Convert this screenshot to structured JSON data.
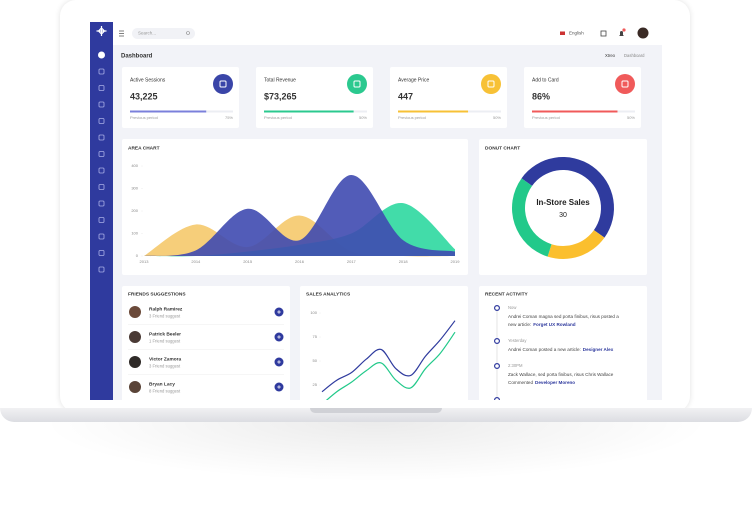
{
  "header": {
    "search_placeholder": "Search...",
    "language": "English"
  },
  "page": {
    "title": "Dashboard",
    "breadcrumb": [
      "Xtreo",
      "Dashboard"
    ]
  },
  "stats": [
    {
      "title": "Active Sessions",
      "value": "43,225",
      "progress": 74,
      "footer_label": "Previous period",
      "footer_value": "75%",
      "bar_color": "#7b80db",
      "icon_color": "#3a45a8"
    },
    {
      "title": "Total Revenue",
      "value": "$73,265",
      "progress": 87,
      "footer_label": "Previous period",
      "footer_value": "50%",
      "bar_color": "#2bc98f",
      "icon_color": "#2bc98f"
    },
    {
      "title": "Average Price",
      "value": "447",
      "progress": 68,
      "footer_label": "Previous period",
      "footer_value": "50%",
      "bar_color": "#f7c136",
      "icon_color": "#f7c136"
    },
    {
      "title": "Add to Card",
      "value": "86%",
      "progress": 83,
      "footer_label": "Previous period",
      "footer_value": "50%",
      "bar_color": "#f05a5a",
      "icon_color": "#f05a5a"
    }
  ],
  "area_chart": {
    "type": "area",
    "title": "AREA CHART",
    "categories": [
      "2013",
      "2014",
      "2015",
      "2016",
      "2017",
      "2018",
      "2019"
    ],
    "ylim": [
      0,
      400
    ],
    "yticks": [
      0,
      100,
      200,
      300,
      400
    ],
    "series": [
      {
        "color": "#f5c96b",
        "values": [
          0,
          140,
          40,
          180,
          20,
          0,
          0
        ]
      },
      {
        "color": "#2ed8a0",
        "values": [
          0,
          0,
          20,
          50,
          100,
          235,
          30
        ]
      },
      {
        "color": "#3f4ab0",
        "values": [
          0,
          25,
          210,
          70,
          360,
          70,
          20
        ]
      }
    ]
  },
  "donut_chart": {
    "type": "pie",
    "title": "DONUT CHART",
    "center_label": "In-Store Sales",
    "center_value": 30,
    "values": [
      50,
      20,
      30
    ],
    "colors": [
      "#2f3b9e",
      "#fbbf2e",
      "#22c98a"
    ]
  },
  "friends": {
    "title": "FRIENDS SUGGESTIONS",
    "items": [
      {
        "name": "Ralph Ramirez",
        "subtitle": "3 Friend suggest"
      },
      {
        "name": "Patrick Beeler",
        "subtitle": "1 Friend suggest"
      },
      {
        "name": "Victor Zamora",
        "subtitle": "3 Friend suggest"
      },
      {
        "name": "Bryan Lacy",
        "subtitle": "8 Friend suggest"
      }
    ]
  },
  "sales_chart": {
    "type": "line",
    "title": "SALES ANALYTICS",
    "ylim": [
      0,
      100
    ],
    "yticks": [
      25,
      50,
      75,
      100
    ],
    "series": [
      {
        "color": "#2f3b9e",
        "values": [
          18,
          30,
          38,
          52,
          62,
          42,
          35,
          55,
          72,
          92
        ]
      },
      {
        "color": "#22c98a",
        "values": [
          5,
          18,
          28,
          40,
          48,
          30,
          22,
          42,
          58,
          80
        ]
      }
    ]
  },
  "recent_activity": {
    "title": "RECENT ACTIVITY",
    "items": [
      {
        "time": "Now",
        "text": [
          "Andrei Coman magna sed porta finibus, risus posted a",
          "new article:"
        ],
        "link": "Forget UX Rowland"
      },
      {
        "time": "Yesterday",
        "text": [
          "Andrei Coman posted a new article:"
        ],
        "link": "Designer Alex"
      },
      {
        "time": "2:30PM",
        "text": [
          "Zack Wallace, sed porta finibus, risus Chris Wallace",
          "Commented"
        ],
        "link": "Developer Moreno"
      }
    ]
  }
}
